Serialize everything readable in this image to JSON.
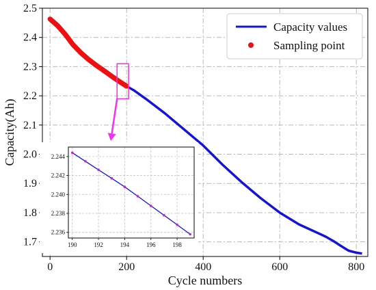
{
  "chart_data": {
    "type": "line",
    "xlabel": "Cycle numbers",
    "ylabel": "Capacity(Ah)",
    "xlim": [
      -20,
      830
    ],
    "ylim": [
      1.65,
      2.5
    ],
    "xticks": [
      0,
      200,
      400,
      600,
      800
    ],
    "xtick_labels": [
      "0",
      "200",
      "400",
      "600",
      "800"
    ],
    "yticks": [
      1.7,
      1.8,
      1.9,
      2.0,
      2.1,
      2.2,
      2.3,
      2.4,
      2.5
    ],
    "ytick_labels": [
      "1.7",
      "1.8",
      "1.9",
      "2.0",
      "2.1",
      "2.2",
      "2.3",
      "2.4",
      "2.5"
    ],
    "grid": true,
    "legend_position": "top-right",
    "series": [
      {
        "name": "Capacity values",
        "kind": "line",
        "color": "#1414d8",
        "x": [
          0,
          20,
          40,
          60,
          80,
          100,
          120,
          140,
          160,
          180,
          200,
          220,
          250,
          300,
          350,
          400,
          450,
          500,
          550,
          600,
          650,
          700,
          720,
          740,
          760,
          780,
          800,
          815
        ],
        "y": [
          2.463,
          2.44,
          2.41,
          2.375,
          2.348,
          2.325,
          2.305,
          2.287,
          2.268,
          2.25,
          2.233,
          2.218,
          2.19,
          2.14,
          2.085,
          2.03,
          1.965,
          1.905,
          1.85,
          1.8,
          1.76,
          1.73,
          1.718,
          1.703,
          1.686,
          1.67,
          1.663,
          1.66
        ]
      },
      {
        "name": "Sampling point",
        "kind": "scatter",
        "color": "#ee1111",
        "x_range": [
          0,
          200
        ],
        "count": 201
      }
    ],
    "highlight_box": {
      "x": [
        175,
        205
      ],
      "y": [
        2.19,
        2.31
      ],
      "color": "#ee33ee"
    },
    "inset": {
      "xlim": [
        189.7,
        199.3
      ],
      "ylim": [
        2.2354,
        2.245
      ],
      "xticks": [
        190,
        192,
        194,
        196,
        198
      ],
      "xtick_labels": [
        "190",
        "192",
        "194",
        "196",
        "198"
      ],
      "yticks": [
        2.236,
        2.238,
        2.24,
        2.242,
        2.244
      ],
      "ytick_labels": [
        "2.236",
        "2.238",
        "2.240",
        "2.242",
        "2.244"
      ],
      "grid": true,
      "x": [
        190,
        191,
        192,
        193,
        194,
        195,
        196,
        197,
        198,
        199
      ],
      "y": [
        2.2444,
        2.2435,
        2.2426,
        2.2417,
        2.2408,
        2.2398,
        2.2388,
        2.2378,
        2.2368,
        2.2358
      ],
      "line_color": "#1414d8",
      "point_color": "#cc22cc"
    }
  }
}
